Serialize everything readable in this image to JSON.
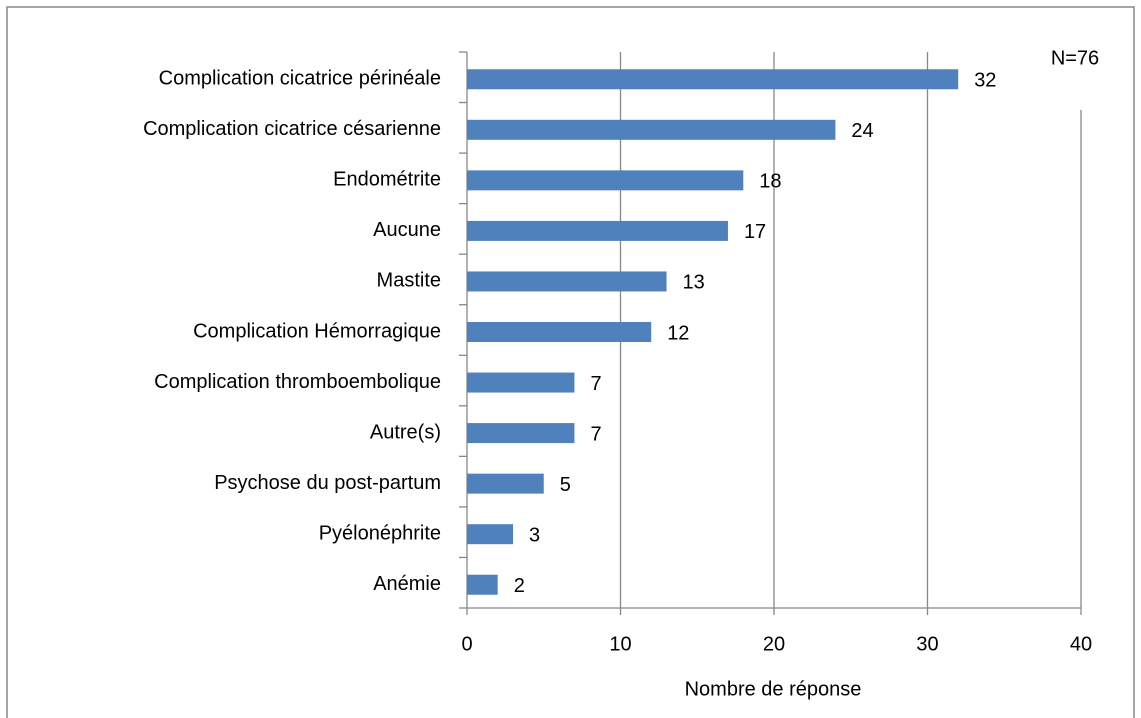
{
  "chart_data": {
    "type": "barh",
    "annotation": "N=76",
    "x_label": "Nombre de réponse",
    "categories": [
      "Complication cicatrice périnéale",
      "Complication cicatrice césarienne",
      "Endométrite",
      "Aucune",
      "Mastite",
      "Complication Hémorragique",
      "Complication thromboembolique",
      "Autre(s)",
      "Psychose du post-partum",
      "Pyélonéphrite",
      "Anémie"
    ],
    "values": [
      32,
      24,
      18,
      17,
      13,
      12,
      7,
      7,
      5,
      3,
      2
    ],
    "color": "#4f81bd",
    "xlim": [
      0,
      40
    ],
    "xticks": [
      0,
      10,
      20,
      30,
      40
    ],
    "grid": true
  }
}
